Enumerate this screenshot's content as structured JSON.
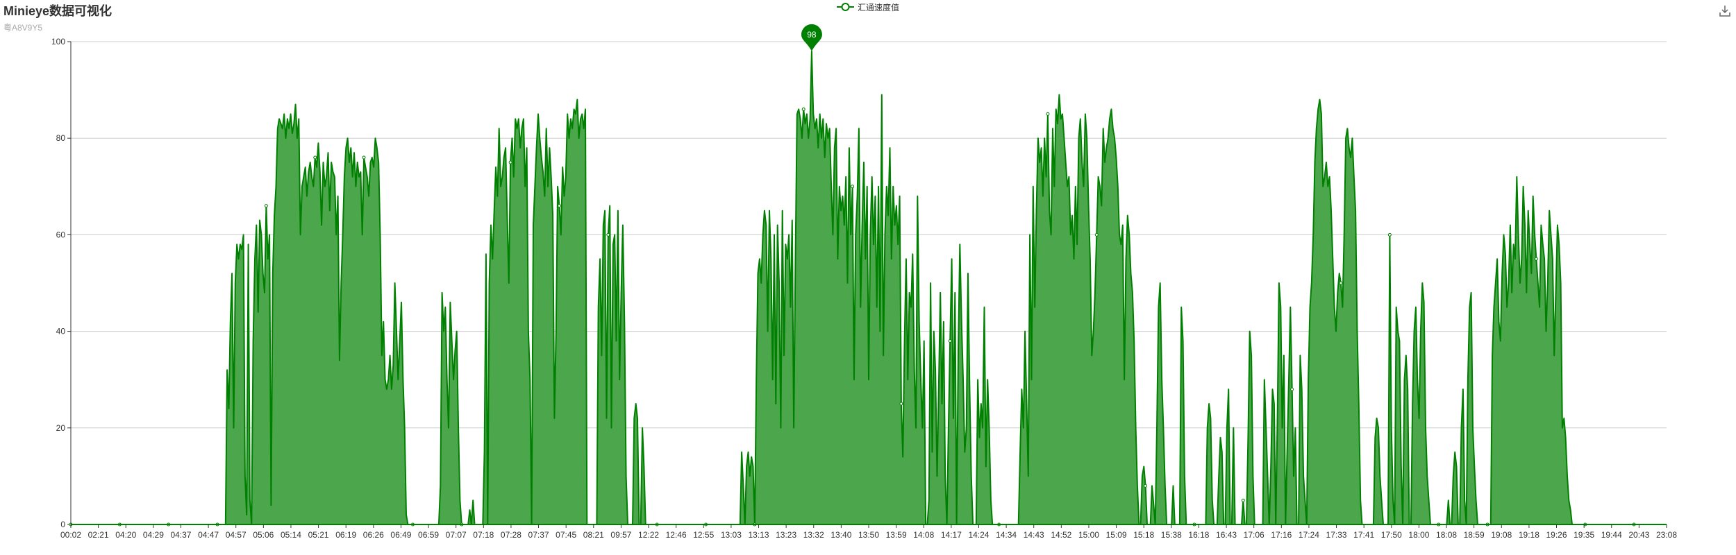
{
  "header": {
    "title": "Minieye数据可视化",
    "subtitle": "粤A8V9Y5"
  },
  "legend": {
    "label": "汇通速度值",
    "icon": "line-circle-icon"
  },
  "toolbox": {
    "download_icon": "download-icon"
  },
  "colors": {
    "series": "#008000",
    "area": "#4ca64c",
    "axis": "#333333",
    "grid": "#cccccc"
  },
  "chart_data": {
    "type": "area",
    "title": "Minieye数据可视化",
    "subtitle": "粤A8V9Y5",
    "ylim": [
      0,
      100
    ],
    "yticks": [
      0,
      20,
      40,
      60,
      80,
      100
    ],
    "grid": true,
    "legend_position": "top-center",
    "x_tick_labels": [
      "00:02",
      "02:21",
      "04:20",
      "04:29",
      "04:37",
      "04:47",
      "04:57",
      "05:06",
      "05:14",
      "05:21",
      "06:19",
      "06:26",
      "06:49",
      "06:59",
      "07:07",
      "07:18",
      "07:28",
      "07:37",
      "07:45",
      "08:21",
      "09:57",
      "12:22",
      "12:46",
      "12:55",
      "13:03",
      "13:13",
      "13:23",
      "13:32",
      "13:40",
      "13:50",
      "13:59",
      "14:08",
      "14:17",
      "14:24",
      "14:34",
      "14:43",
      "14:52",
      "15:00",
      "15:09",
      "15:18",
      "15:38",
      "16:18",
      "16:43",
      "17:06",
      "17:16",
      "17:24",
      "17:33",
      "17:41",
      "17:50",
      "18:00",
      "18:08",
      "18:59",
      "19:08",
      "19:18",
      "19:26",
      "19:35",
      "19:44",
      "20:43",
      "23:08"
    ],
    "series": [
      {
        "name": "汇通速度值",
        "values": [
          0,
          0,
          0,
          0,
          0,
          0,
          0,
          0,
          0,
          0,
          0,
          0,
          0,
          0,
          0,
          0,
          0,
          0,
          0,
          0,
          0,
          0,
          0,
          0,
          0,
          0,
          0,
          0,
          0,
          0,
          0,
          0,
          0,
          0,
          0,
          0,
          0,
          0,
          0,
          0,
          0,
          0,
          0,
          0,
          0,
          0,
          0,
          0,
          0,
          0,
          0,
          0,
          0,
          0,
          0,
          0,
          0,
          0,
          0,
          0,
          0,
          0,
          0,
          0,
          0,
          0,
          0,
          0,
          0,
          0,
          0,
          0,
          0,
          0,
          0,
          0,
          0,
          0,
          0,
          0,
          0,
          0,
          0,
          0,
          0,
          0,
          0,
          0,
          0,
          0,
          0,
          0,
          0,
          0,
          0,
          0,
          32,
          24,
          42,
          52,
          20,
          50,
          58,
          55,
          58,
          57,
          60,
          10,
          2,
          58,
          5,
          0,
          38,
          55,
          62,
          44,
          63,
          60,
          52,
          48,
          66,
          55,
          60,
          4,
          52,
          64,
          70,
          82,
          84,
          83,
          82,
          85,
          80,
          84,
          82,
          85,
          81,
          83,
          87,
          80,
          84,
          60,
          70,
          72,
          74,
          68,
          73,
          75,
          72,
          70,
          76,
          74,
          79,
          73,
          62,
          75,
          70,
          72,
          77,
          65,
          75,
          73,
          72,
          60,
          68,
          34,
          50,
          60,
          72,
          78,
          80,
          75,
          78,
          72,
          77,
          70,
          75,
          72,
          73,
          60,
          76,
          74,
          72,
          68,
          75,
          76,
          74,
          80,
          78,
          75,
          60,
          35,
          42,
          30,
          28,
          30,
          35,
          28,
          33,
          50,
          40,
          30,
          38,
          46,
          30,
          20,
          2,
          0,
          0,
          0,
          0,
          0,
          0,
          0,
          0,
          0,
          0,
          0,
          0,
          0,
          0,
          0,
          0,
          0,
          0,
          0,
          0,
          8,
          48,
          40,
          45,
          30,
          20,
          46,
          38,
          30,
          36,
          40,
          20,
          5,
          0,
          0,
          0,
          0,
          0,
          3,
          0,
          5,
          0,
          0,
          0,
          0,
          0,
          0,
          15,
          56,
          0,
          50,
          62,
          55,
          65,
          74,
          68,
          82,
          70,
          72,
          76,
          78,
          64,
          50,
          75,
          80,
          72,
          84,
          82,
          84,
          78,
          82,
          84,
          70,
          78,
          40,
          30,
          0,
          62,
          70,
          78,
          85,
          80,
          76,
          73,
          68,
          82,
          70,
          78,
          72,
          64,
          22,
          40,
          70,
          66,
          60,
          74,
          68,
          72,
          85,
          80,
          84,
          82,
          86,
          85,
          88,
          80,
          84,
          85,
          82,
          86,
          0,
          0,
          0,
          0,
          0,
          0,
          0,
          45,
          55,
          35,
          62,
          65,
          22,
          60,
          66,
          20,
          58,
          60,
          38,
          65,
          30,
          48,
          62,
          42,
          10,
          0,
          0,
          0,
          0,
          22,
          25,
          22,
          0,
          0,
          20,
          12,
          0,
          0,
          0,
          0,
          0,
          0,
          0,
          0,
          0,
          0,
          0,
          0,
          0,
          0,
          0,
          0,
          0,
          0,
          0,
          0,
          0,
          0,
          0,
          0,
          0,
          0,
          0,
          0,
          0,
          0,
          0,
          0,
          0,
          0,
          0,
          0,
          0,
          0,
          0,
          0,
          0,
          0,
          0,
          0,
          0,
          0,
          0,
          0,
          0,
          0,
          0,
          0,
          0,
          0,
          0,
          0,
          0,
          0,
          0,
          15,
          8,
          0,
          12,
          15,
          10,
          14,
          12,
          0,
          30,
          52,
          55,
          50,
          60,
          65,
          62,
          40,
          65,
          55,
          30,
          60,
          25,
          62,
          50,
          20,
          65,
          35,
          58,
          55,
          60,
          45,
          63,
          20,
          55,
          85,
          86,
          84,
          80,
          86,
          83,
          85,
          80,
          84,
          98,
          85,
          82,
          84,
          78,
          85,
          80,
          84,
          76,
          83,
          80,
          82,
          70,
          60,
          78,
          82,
          55,
          70,
          65,
          68,
          62,
          72,
          50,
          78,
          60,
          70,
          30,
          60,
          68,
          82,
          45,
          62,
          75,
          55,
          70,
          30,
          60,
          72,
          58,
          68,
          45,
          70,
          40,
          89,
          35,
          60,
          70,
          64,
          78,
          55,
          70,
          62,
          66,
          58,
          68,
          25,
          14,
          38,
          55,
          30,
          48,
          45,
          56,
          32,
          20,
          68,
          42,
          30,
          20,
          38,
          0,
          0,
          5,
          50,
          15,
          40,
          32,
          10,
          28,
          48,
          25,
          42,
          10,
          0,
          20,
          38,
          55,
          22,
          48,
          0,
          36,
          58,
          42,
          30,
          15,
          20,
          52,
          28,
          10,
          0,
          0,
          0,
          30,
          18,
          25,
          20,
          45,
          12,
          30,
          20,
          5,
          0,
          0,
          0,
          0,
          0,
          0,
          0,
          0,
          0,
          0,
          0,
          0,
          0,
          0,
          0,
          0,
          0,
          15,
          28,
          20,
          40,
          25,
          10,
          60,
          30,
          70,
          45,
          65,
          80,
          75,
          78,
          68,
          80,
          72,
          85,
          65,
          60,
          82,
          70,
          86,
          83,
          89,
          84,
          85,
          80,
          75,
          70,
          72,
          60,
          64,
          55,
          70,
          58,
          80,
          84,
          75,
          70,
          85,
          80,
          66,
          55,
          35,
          40,
          48,
          60,
          72,
          70,
          66,
          82,
          75,
          78,
          80,
          84,
          86,
          82,
          80,
          76,
          70,
          60,
          58,
          62,
          30,
          55,
          64,
          60,
          52,
          48,
          38,
          20,
          8,
          0,
          0,
          10,
          12,
          8,
          0,
          0,
          0,
          8,
          4,
          0,
          20,
          45,
          50,
          30,
          20,
          8,
          0,
          0,
          0,
          0,
          8,
          0,
          0,
          0,
          0,
          45,
          38,
          10,
          0,
          0,
          0,
          0,
          0,
          0,
          0,
          0,
          0,
          0,
          0,
          0,
          0,
          20,
          25,
          22,
          5,
          0,
          0,
          0,
          10,
          18,
          15,
          0,
          0,
          20,
          28,
          0,
          0,
          20,
          0,
          0,
          0,
          0,
          0,
          5,
          0,
          0,
          18,
          40,
          35,
          10,
          0,
          0,
          0,
          0,
          0,
          0,
          30,
          20,
          10,
          0,
          12,
          28,
          25,
          0,
          22,
          50,
          45,
          20,
          35,
          0,
          15,
          30,
          45,
          28,
          10,
          20,
          0,
          0,
          35,
          28,
          10,
          5,
          0,
          30,
          45,
          50,
          60,
          75,
          82,
          86,
          88,
          85,
          70,
          72,
          75,
          70,
          72,
          65,
          55,
          45,
          40,
          48,
          52,
          50,
          45,
          60,
          80,
          82,
          78,
          76,
          80,
          72,
          65,
          40,
          25,
          5,
          0,
          0,
          0,
          0,
          0,
          0,
          0,
          0,
          18,
          22,
          20,
          10,
          5,
          0,
          0,
          0,
          0,
          60,
          20,
          5,
          0,
          45,
          40,
          38,
          12,
          0,
          30,
          35,
          28,
          0,
          0,
          25,
          40,
          45,
          30,
          22,
          40,
          50,
          46,
          20,
          10,
          5,
          0,
          0,
          0,
          0,
          0,
          0,
          0,
          0,
          0,
          0,
          0,
          5,
          0,
          0,
          10,
          15,
          12,
          0,
          0,
          20,
          28,
          5,
          0,
          30,
          45,
          48,
          20,
          12,
          5,
          0,
          0,
          0,
          0,
          0,
          0,
          0,
          0,
          0,
          35,
          45,
          50,
          55,
          42,
          38,
          52,
          60,
          56,
          45,
          50,
          62,
          48,
          58,
          55,
          72,
          60,
          50,
          55,
          70,
          62,
          48,
          65,
          58,
          52,
          68,
          60,
          55,
          50,
          45,
          62,
          58,
          55,
          40,
          50,
          65,
          60,
          55,
          35,
          48,
          62,
          58,
          50,
          20,
          22,
          18,
          10,
          5,
          3,
          0,
          0,
          0,
          0,
          0,
          0,
          0,
          0,
          0,
          0,
          0,
          0,
          0,
          0,
          0,
          0,
          0,
          0,
          0,
          0,
          0,
          0,
          0,
          0,
          0,
          0,
          0,
          0,
          0,
          0,
          0,
          0,
          0,
          0,
          0,
          0,
          0,
          0,
          0,
          0,
          0,
          0,
          0,
          0,
          0,
          0,
          0,
          0,
          0,
          0,
          0,
          0,
          0,
          0,
          0,
          0,
          0,
          0,
          0
        ]
      }
    ],
    "markpoint": {
      "label": "98",
      "type": "max"
    }
  }
}
